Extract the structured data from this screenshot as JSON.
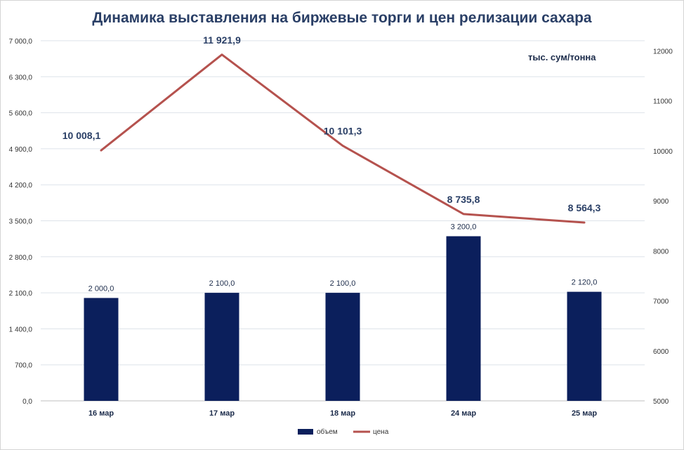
{
  "chart_data": {
    "type": "bar",
    "title": "Динамика выставления на биржевые торги и цен релизации сахара",
    "unit_label": "тыс. сум/тонна",
    "categories": [
      "16 мар",
      "17 мар",
      "18 мар",
      "24 мар",
      "25 мар"
    ],
    "series": [
      {
        "name": "объем",
        "type": "bar",
        "axis": "left",
        "color": "#0b1f5c",
        "values": [
          2000.0,
          2100.0,
          2100.0,
          3200.0,
          2120.0
        ],
        "labels": [
          "2 000,0",
          "2 100,0",
          "2 100,0",
          "3 200,0",
          "2 120,0"
        ]
      },
      {
        "name": "цена",
        "type": "line",
        "axis": "right",
        "color": "#b5524e",
        "values": [
          10008.1,
          11921.9,
          10101.3,
          8735.8,
          8564.3
        ],
        "labels": [
          "10 008,1",
          "11 921,9",
          "10 101,3",
          "8 735,8",
          "8 564,3"
        ]
      }
    ],
    "left_axis": {
      "ylim": [
        0,
        7000
      ],
      "ticks": [
        0,
        700,
        1400,
        2100,
        2800,
        3500,
        4200,
        4900,
        5600,
        6300,
        7000
      ],
      "tick_labels": [
        "0,0",
        "700,0",
        "1 400,0",
        "2 100,0",
        "2 800,0",
        "3 500,0",
        "4 200,0",
        "4 900,0",
        "5 600,0",
        "6 300,0",
        "7 000,0"
      ]
    },
    "right_axis": {
      "ylim": [
        5000,
        12200
      ],
      "ticks": [
        5000,
        6000,
        7000,
        8000,
        9000,
        10000,
        11000,
        12000
      ],
      "tick_labels": [
        "5000",
        "6000",
        "7000",
        "8000",
        "9000",
        "10000",
        "11000",
        "12000"
      ]
    },
    "grid": true,
    "legend_position": "bottom"
  }
}
